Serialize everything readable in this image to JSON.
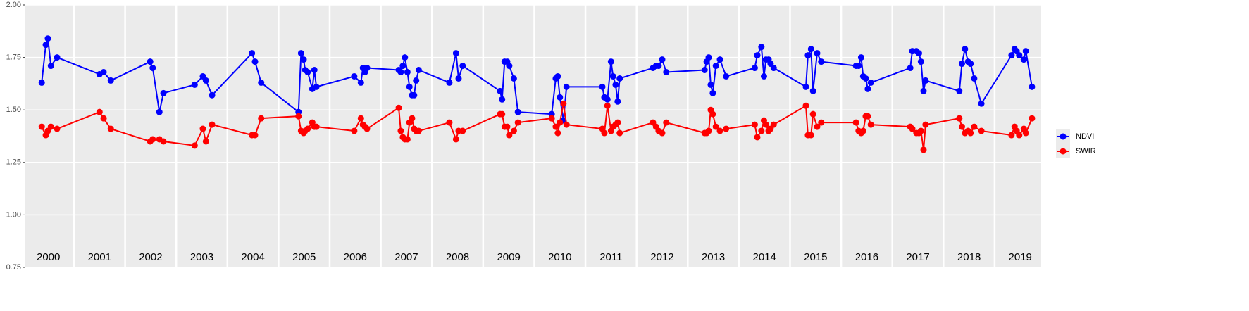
{
  "chart_data": {
    "type": "line",
    "x": [
      2000.37,
      2000.45,
      2000.49,
      2000.55,
      2000.67,
      2001.5,
      2001.58,
      2001.72,
      2002.49,
      2002.54,
      2002.67,
      2002.75,
      2003.36,
      2003.52,
      2003.58,
      2003.7,
      2004.48,
      2004.54,
      2004.66,
      2005.39,
      2005.44,
      2005.49,
      2005.52,
      2005.57,
      2005.66,
      2005.7,
      2005.74,
      2006.48,
      2006.61,
      2006.65,
      2006.69,
      2006.73,
      2007.35,
      2007.39,
      2007.43,
      2007.47,
      2007.52,
      2007.56,
      2007.61,
      2007.65,
      2007.69,
      2007.74,
      2008.34,
      2008.47,
      2008.52,
      2008.6,
      2009.33,
      2009.37,
      2009.42,
      2009.47,
      2009.51,
      2009.6,
      2009.68,
      2010.34,
      2010.42,
      2010.46,
      2010.5,
      2010.57,
      2010.63,
      2011.33,
      2011.37,
      2011.43,
      2011.5,
      2011.54,
      2011.59,
      2011.63,
      2011.67,
      2012.32,
      2012.38,
      2012.43,
      2012.5,
      2012.58,
      2013.33,
      2013.37,
      2013.41,
      2013.45,
      2013.49,
      2013.55,
      2013.63,
      2013.75,
      2014.31,
      2014.36,
      2014.44,
      2014.49,
      2014.53,
      2014.58,
      2014.62,
      2014.68,
      2015.31,
      2015.35,
      2015.41,
      2015.45,
      2015.53,
      2015.61,
      2016.29,
      2016.34,
      2016.39,
      2016.43,
      2016.48,
      2016.52,
      2016.58,
      2017.35,
      2017.39,
      2017.47,
      2017.52,
      2017.56,
      2017.61,
      2017.65,
      2018.31,
      2018.36,
      2018.42,
      2018.48,
      2018.53,
      2018.6,
      2018.74,
      2019.33,
      2019.39,
      2019.43,
      2019.48,
      2019.57,
      2019.61,
      2019.73
    ],
    "series": [
      {
        "name": "NDVI",
        "color": "#0000ff",
        "values": [
          1.63,
          1.81,
          1.84,
          1.71,
          1.75,
          1.67,
          1.68,
          1.64,
          1.73,
          1.7,
          1.49,
          1.58,
          1.62,
          1.66,
          1.64,
          1.57,
          1.77,
          1.73,
          1.63,
          1.49,
          1.77,
          1.74,
          1.69,
          1.68,
          1.6,
          1.69,
          1.61,
          1.66,
          1.63,
          1.7,
          1.68,
          1.7,
          1.69,
          1.68,
          1.71,
          1.75,
          1.68,
          1.61,
          1.57,
          1.57,
          1.64,
          1.69,
          1.63,
          1.77,
          1.65,
          1.71,
          1.59,
          1.55,
          1.73,
          1.73,
          1.71,
          1.65,
          1.49,
          1.48,
          1.65,
          1.66,
          1.56,
          1.45,
          1.61,
          1.61,
          1.56,
          1.55,
          1.73,
          1.66,
          1.62,
          1.54,
          1.65,
          1.7,
          1.71,
          1.71,
          1.74,
          1.68,
          1.69,
          1.73,
          1.75,
          1.62,
          1.58,
          1.71,
          1.74,
          1.66,
          1.7,
          1.76,
          1.8,
          1.66,
          1.74,
          1.74,
          1.72,
          1.7,
          1.61,
          1.76,
          1.79,
          1.59,
          1.77,
          1.73,
          1.71,
          1.71,
          1.75,
          1.66,
          1.65,
          1.6,
          1.63,
          1.7,
          1.78,
          1.78,
          1.77,
          1.73,
          1.59,
          1.64,
          1.59,
          1.72,
          1.79,
          1.73,
          1.72,
          1.65,
          1.53,
          1.76,
          1.79,
          1.78,
          1.76,
          1.74,
          1.78,
          1.61
        ]
      },
      {
        "name": "SWIR",
        "color": "#ff0000",
        "values": [
          1.42,
          1.38,
          1.4,
          1.42,
          1.41,
          1.49,
          1.46,
          1.41,
          1.35,
          1.36,
          1.36,
          1.35,
          1.33,
          1.41,
          1.35,
          1.43,
          1.38,
          1.38,
          1.46,
          1.47,
          1.4,
          1.39,
          1.4,
          1.41,
          1.44,
          1.42,
          1.42,
          1.4,
          1.46,
          1.43,
          1.42,
          1.41,
          1.51,
          1.4,
          1.37,
          1.36,
          1.36,
          1.44,
          1.46,
          1.41,
          1.4,
          1.4,
          1.44,
          1.36,
          1.4,
          1.4,
          1.48,
          1.48,
          1.42,
          1.42,
          1.38,
          1.4,
          1.44,
          1.46,
          1.42,
          1.39,
          1.44,
          1.53,
          1.43,
          1.41,
          1.39,
          1.52,
          1.4,
          1.42,
          1.43,
          1.44,
          1.39,
          1.44,
          1.42,
          1.4,
          1.39,
          1.44,
          1.39,
          1.39,
          1.4,
          1.5,
          1.48,
          1.42,
          1.4,
          1.41,
          1.43,
          1.37,
          1.4,
          1.45,
          1.43,
          1.4,
          1.41,
          1.43,
          1.52,
          1.38,
          1.38,
          1.48,
          1.42,
          1.44,
          1.44,
          1.4,
          1.39,
          1.4,
          1.47,
          1.47,
          1.43,
          1.42,
          1.41,
          1.39,
          1.39,
          1.4,
          1.31,
          1.43,
          1.46,
          1.42,
          1.39,
          1.4,
          1.39,
          1.42,
          1.4,
          1.38,
          1.42,
          1.4,
          1.38,
          1.41,
          1.39,
          1.46
        ]
      }
    ],
    "xlim": [
      2000.05,
      2019.91
    ],
    "xticks": [
      {
        "value": 2000.5,
        "label": "2000"
      },
      {
        "value": 2001.5,
        "label": "2001"
      },
      {
        "value": 2002.5,
        "label": "2002"
      },
      {
        "value": 2003.5,
        "label": "2003"
      },
      {
        "value": 2004.5,
        "label": "2004"
      },
      {
        "value": 2005.5,
        "label": "2005"
      },
      {
        "value": 2006.5,
        "label": "2006"
      },
      {
        "value": 2007.5,
        "label": "2007"
      },
      {
        "value": 2008.5,
        "label": "2008"
      },
      {
        "value": 2009.5,
        "label": "2009"
      },
      {
        "value": 2010.5,
        "label": "2010"
      },
      {
        "value": 2011.5,
        "label": "2011"
      },
      {
        "value": 2012.5,
        "label": "2012"
      },
      {
        "value": 2013.5,
        "label": "2013"
      },
      {
        "value": 2014.5,
        "label": "2014"
      },
      {
        "value": 2015.5,
        "label": "2015"
      },
      {
        "value": 2016.5,
        "label": "2016"
      },
      {
        "value": 2017.5,
        "label": "2017"
      },
      {
        "value": 2018.5,
        "label": "2018"
      },
      {
        "value": 2019.5,
        "label": "2019"
      }
    ],
    "xgrid": [
      2001,
      2002,
      2003,
      2004,
      2005,
      2006,
      2007,
      2008,
      2009,
      2010,
      2011,
      2012,
      2013,
      2014,
      2015,
      2016,
      2017,
      2018,
      2019
    ],
    "ylim": [
      0.75,
      2.0
    ],
    "yticks": [
      0.75,
      {
        "value": 1.0,
        "label": "1.00"
      },
      1.25,
      {
        "value": 1.5,
        "label": "1.50"
      },
      1.75,
      {
        "value": 2.0,
        "label": "2.00"
      }
    ],
    "grid": true,
    "legend": "right"
  }
}
